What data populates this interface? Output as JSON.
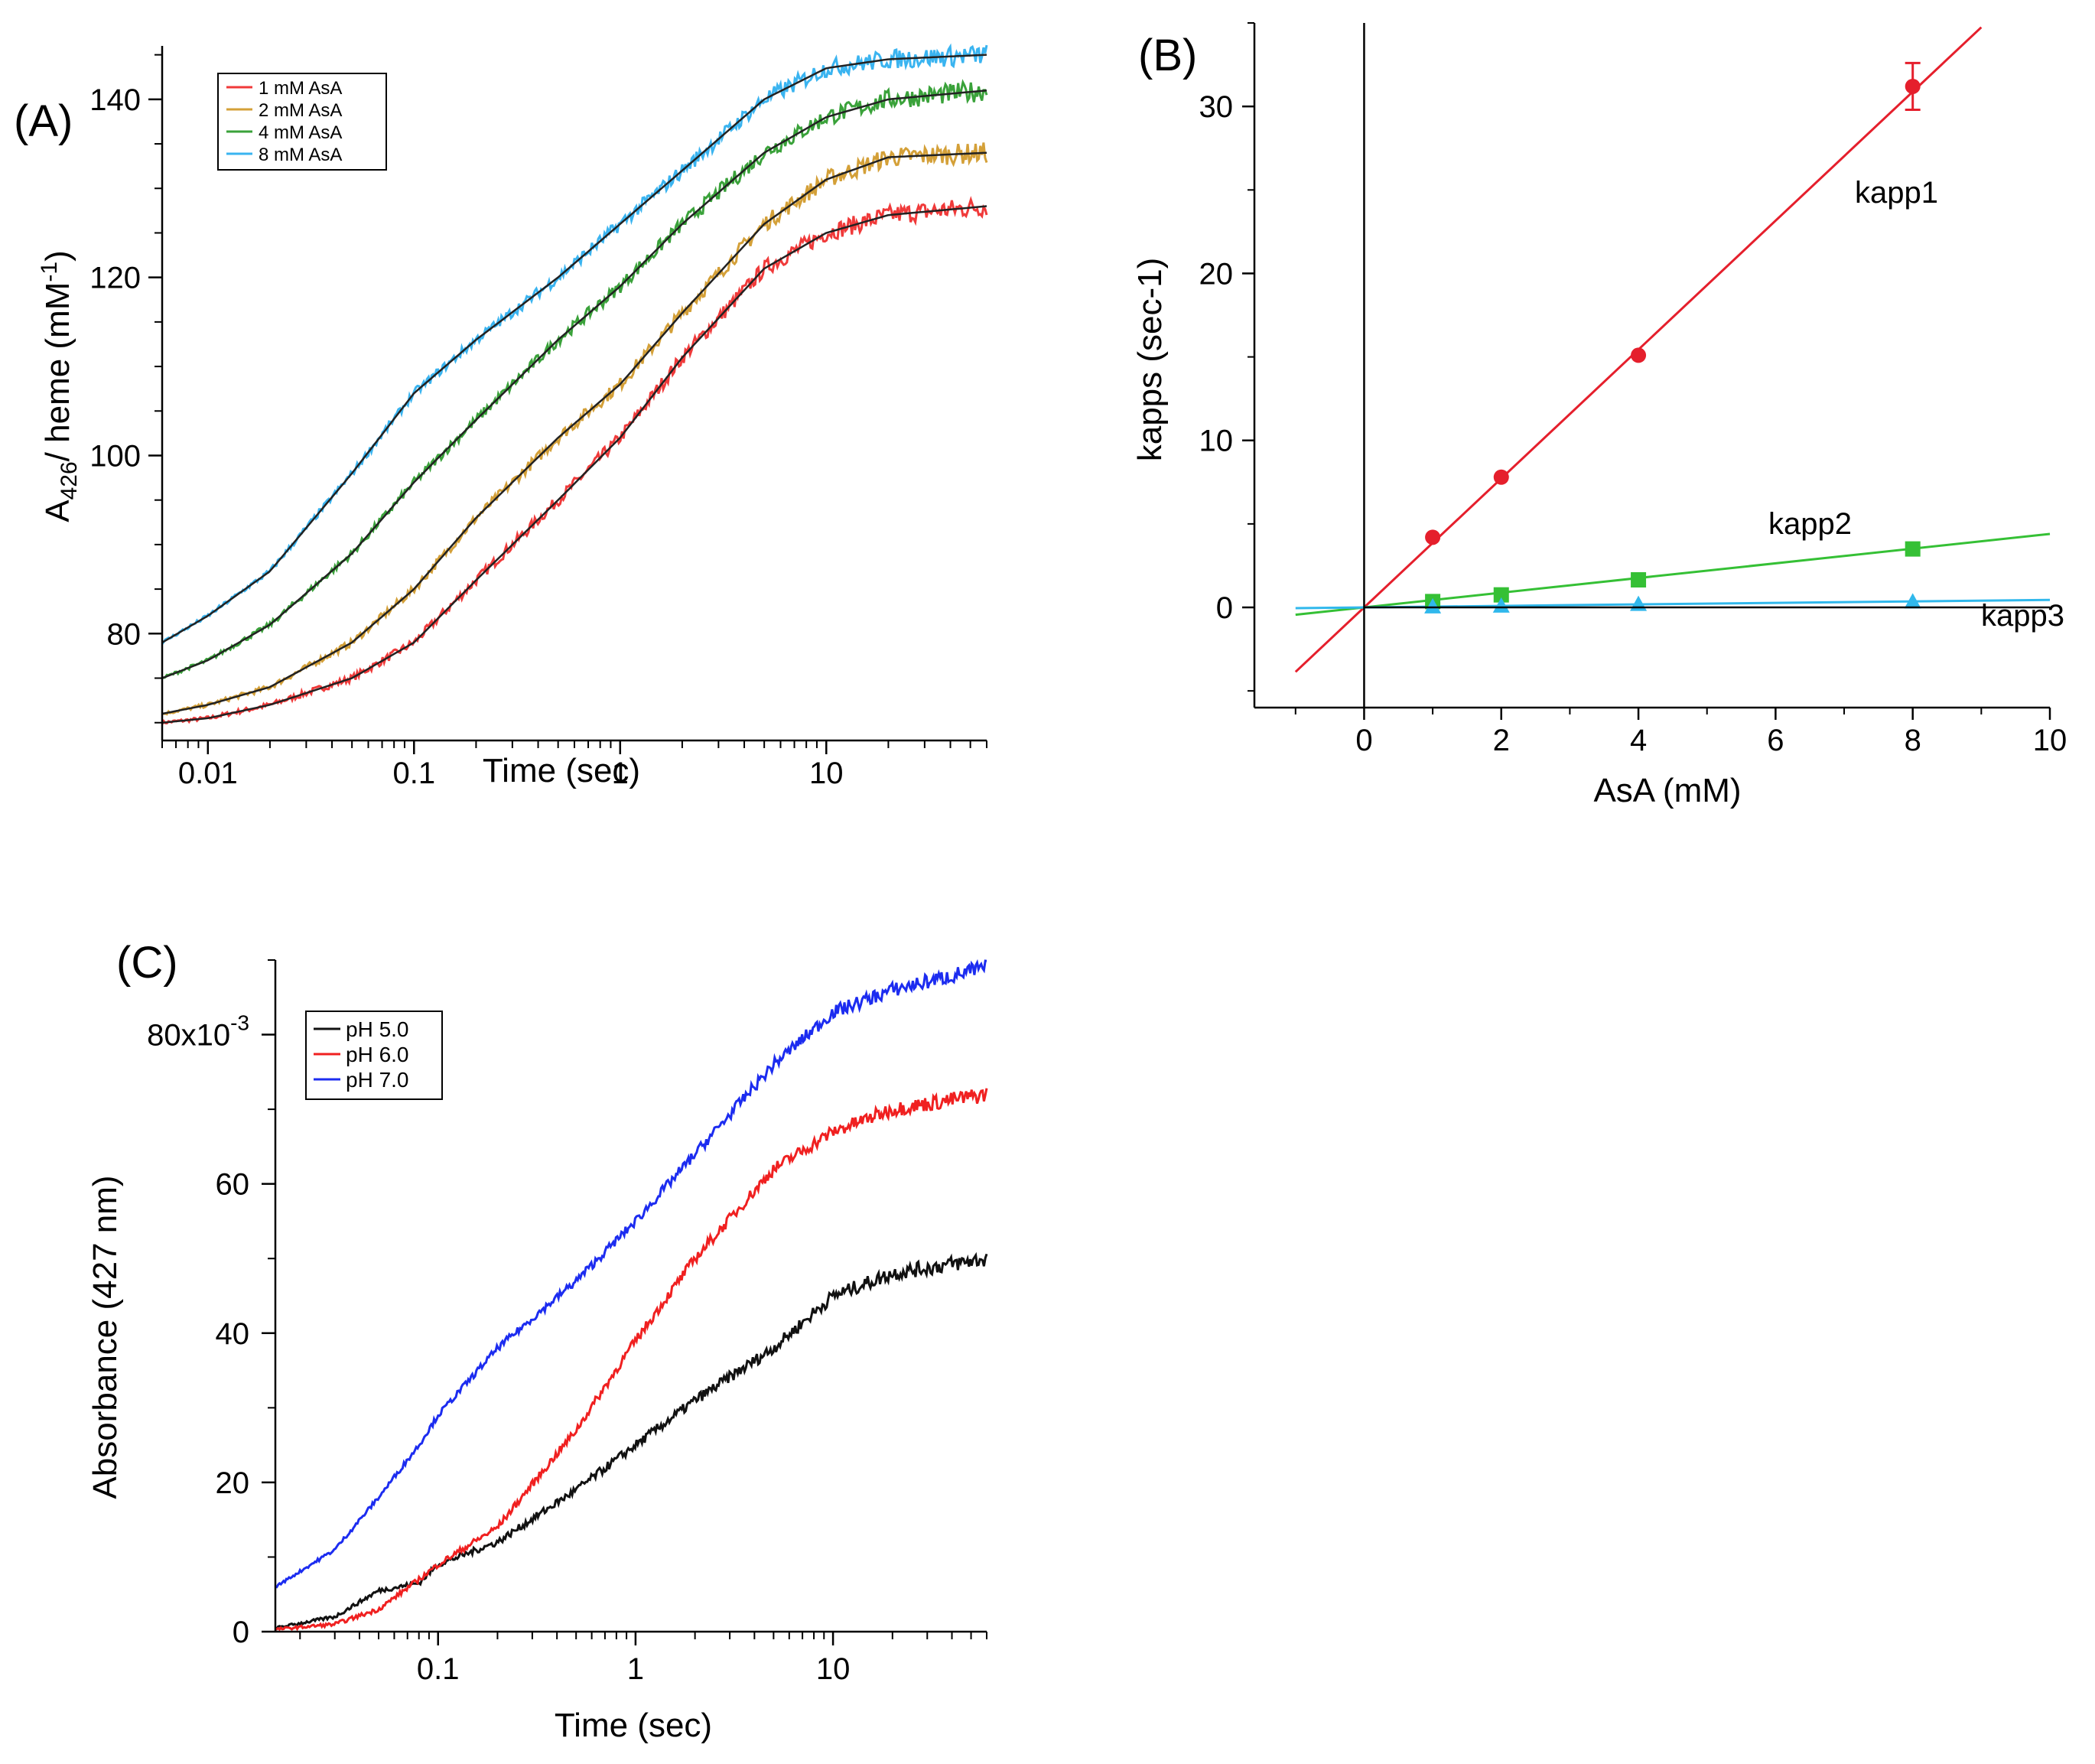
{
  "chart_data": [
    {
      "panel": "(A)",
      "type": "line",
      "xlabel": "Time (sec)",
      "ylabel_main": "A",
      "ylabel_sub": "426",
      "ylabel_rest": "/ heme (mM",
      "ylabel_sup": "-1",
      "ylabel_close": ")",
      "xscale": "log",
      "xlim": [
        0.006,
        60
      ],
      "ylim": [
        68,
        146
      ],
      "xticks": [
        {
          "v": 0.01,
          "label": "0.01"
        },
        {
          "v": 0.1,
          "label": "0.1"
        },
        {
          "v": 1,
          "label": "1"
        },
        {
          "v": 10,
          "label": "10"
        }
      ],
      "yticks": [
        {
          "v": 80,
          "label": "80"
        },
        {
          "v": 100,
          "label": "100"
        },
        {
          "v": 120,
          "label": "120"
        },
        {
          "v": 140,
          "label": "140"
        }
      ],
      "legend": "top-left",
      "series": [
        {
          "name": "1 mM AsA",
          "color": "#f03a3a",
          "x": [
            0.006,
            0.01,
            0.02,
            0.05,
            0.1,
            0.2,
            0.5,
            1,
            2,
            5,
            10,
            20,
            60
          ],
          "y": [
            70,
            70.5,
            72,
            75,
            79,
            86,
            95,
            102,
            111,
            121,
            125,
            127,
            128
          ]
        },
        {
          "name": "2 mM AsA",
          "color": "#d4a038",
          "x": [
            0.006,
            0.01,
            0.02,
            0.05,
            0.1,
            0.2,
            0.5,
            1,
            2,
            5,
            10,
            20,
            60
          ],
          "y": [
            71,
            72,
            74,
            79,
            85,
            93,
            102,
            108,
            116,
            126,
            131,
            133.5,
            134
          ]
        },
        {
          "name": "4 mM AsA",
          "color": "#3aa23a",
          "x": [
            0.006,
            0.01,
            0.02,
            0.05,
            0.1,
            0.2,
            0.5,
            1,
            2,
            5,
            10,
            20,
            60
          ],
          "y": [
            75,
            77,
            81,
            89,
            97,
            104,
            113,
            119,
            126,
            134,
            138,
            140,
            141
          ]
        },
        {
          "name": "8 mM AsA",
          "color": "#3ab4f0",
          "x": [
            0.006,
            0.01,
            0.02,
            0.05,
            0.1,
            0.2,
            0.5,
            1,
            2,
            5,
            10,
            20,
            60
          ],
          "y": [
            79,
            82,
            87,
            98,
            107,
            113,
            120,
            126,
            132,
            140,
            143.5,
            144.5,
            145
          ]
        }
      ]
    },
    {
      "panel": "(B)",
      "type": "scatter",
      "xlabel": "AsA (mM)",
      "ylabel": "kapps (sec-1)",
      "xlim": [
        -1.6,
        10
      ],
      "ylim": [
        -6,
        35
      ],
      "xticks": [
        {
          "v": 0,
          "label": "0"
        },
        {
          "v": 2,
          "label": "2"
        },
        {
          "v": 4,
          "label": "4"
        },
        {
          "v": 6,
          "label": "6"
        },
        {
          "v": 8,
          "label": "8"
        },
        {
          "v": 10,
          "label": "10"
        }
      ],
      "yticks": [
        {
          "v": 0,
          "label": "0"
        },
        {
          "v": 10,
          "label": "10"
        },
        {
          "v": 20,
          "label": "20"
        },
        {
          "v": 30,
          "label": "30"
        }
      ],
      "series": [
        {
          "name": "kapp1",
          "color": "#e51f2c",
          "marker": "circle",
          "x": [
            1,
            2,
            4,
            8
          ],
          "y": [
            4.2,
            7.8,
            15.1,
            31.2
          ],
          "err": [
            0,
            0,
            0,
            1.4
          ],
          "fit": {
            "slope": 3.86,
            "intercept": 0,
            "x0": -1,
            "x1": 9
          }
        },
        {
          "name": "kapp2",
          "color": "#35c035",
          "marker": "square",
          "x": [
            1,
            2,
            4,
            8
          ],
          "y": [
            0.35,
            0.75,
            1.65,
            3.5
          ],
          "err": [
            0,
            0,
            0,
            0
          ],
          "fit": {
            "slope": 0.44,
            "intercept": 0,
            "x0": -1,
            "x1": 10
          }
        },
        {
          "name": "kapp3",
          "color": "#30b8ec",
          "marker": "triangle",
          "x": [
            1,
            2,
            4,
            8
          ],
          "y": [
            0.05,
            0.1,
            0.2,
            0.35
          ],
          "err": [
            0,
            0,
            0,
            0
          ],
          "fit": {
            "slope": 0.045,
            "intercept": 0,
            "x0": -1,
            "x1": 10
          }
        }
      ]
    },
    {
      "panel": "(C)",
      "type": "line",
      "xlabel": "Time (sec)",
      "ylabel": "Absorbance (427 nm)",
      "xscale": "log",
      "xlim": [
        0.015,
        60
      ],
      "ylim": [
        0,
        90
      ],
      "xticks": [
        {
          "v": 0.1,
          "label": "0.1"
        },
        {
          "v": 1,
          "label": "1"
        },
        {
          "v": 10,
          "label": "10"
        }
      ],
      "yticks": [
        {
          "v": 0,
          "label": "0"
        },
        {
          "v": 20,
          "label": "20"
        },
        {
          "v": 40,
          "label": "40"
        },
        {
          "v": 60,
          "label": "60"
        },
        {
          "v": 80,
          "label": "80x10"
        }
      ],
      "ytick_exponent": "-3",
      "legend": "top-left",
      "series": [
        {
          "name": "pH 5.0",
          "color": "#111111",
          "x": [
            0.015,
            0.03,
            0.05,
            0.08,
            0.1,
            0.2,
            0.5,
            1,
            2,
            5,
            10,
            20,
            60
          ],
          "y": [
            0.5,
            2,
            5.5,
            6.5,
            9,
            12,
            19,
            25,
            31,
            38,
            45,
            48,
            50
          ]
        },
        {
          "name": "pH 6.0",
          "color": "#f02020",
          "x": [
            0.015,
            0.03,
            0.05,
            0.08,
            0.1,
            0.2,
            0.5,
            1,
            2,
            5,
            10,
            20,
            60
          ],
          "y": [
            0.3,
            1,
            3,
            7,
            9,
            14,
            27,
            39,
            50,
            62,
            67,
            70,
            72
          ]
        },
        {
          "name": "pH 7.0",
          "color": "#1c2cf0",
          "x": [
            0.015,
            0.03,
            0.05,
            0.08,
            0.1,
            0.2,
            0.5,
            1,
            2,
            5,
            10,
            20,
            60
          ],
          "y": [
            6,
            11,
            18,
            25,
            29,
            38,
            47,
            55,
            64,
            76,
            83,
            86,
            89
          ]
        }
      ]
    }
  ]
}
